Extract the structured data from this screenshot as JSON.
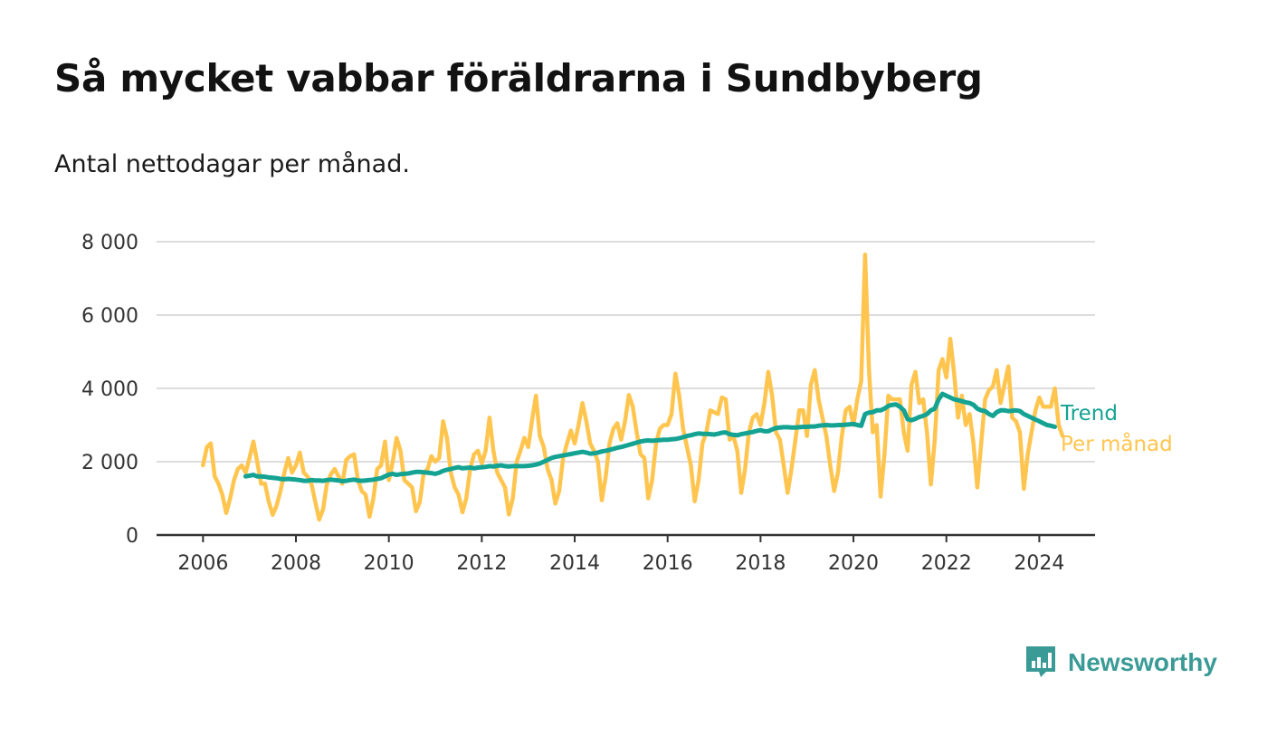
{
  "header": {
    "title": "Så mycket vabbar föräldrarna i Sundbyberg",
    "subtitle": "Antal nettodagar per månad."
  },
  "brand": {
    "name": "Newsworthy",
    "icon": "newsworthy-logo-icon",
    "color": "#3a9b96"
  },
  "colors": {
    "trend": "#14a393",
    "monthly": "#ffc54f",
    "grid": "#dddddd",
    "axis": "#333333"
  },
  "chart_data": {
    "type": "line",
    "x_unit": "year",
    "xlim": [
      2005.0,
      2025.2
    ],
    "ylim": [
      0,
      8000
    ],
    "yticks": [
      0,
      2000,
      4000,
      6000,
      8000
    ],
    "ytick_labels": [
      "0",
      "2 000",
      "4 000",
      "6 000",
      "8 000"
    ],
    "xticks": [
      2006,
      2008,
      2010,
      2012,
      2014,
      2016,
      2018,
      2020,
      2022,
      2024
    ],
    "xtick_labels": [
      "2006",
      "2008",
      "2010",
      "2012",
      "2014",
      "2016",
      "2018",
      "2020",
      "2022",
      "2024"
    ],
    "grid": true,
    "legend": "inline-right",
    "series": [
      {
        "name": "Per månad",
        "start": "2006-01",
        "values": [
          1900,
          2400,
          2500,
          1600,
          1400,
          1100,
          600,
          1000,
          1500,
          1800,
          1900,
          1700,
          2100,
          2550,
          2000,
          1400,
          1400,
          900,
          550,
          800,
          1200,
          1700,
          2100,
          1700,
          1900,
          2250,
          1700,
          1600,
          1400,
          900,
          420,
          700,
          1400,
          1650,
          1800,
          1600,
          1400,
          2050,
          2150,
          2200,
          1500,
          1200,
          1100,
          500,
          1000,
          1800,
          1900,
          2550,
          1500,
          2000,
          2650,
          2300,
          1500,
          1400,
          1300,
          650,
          900,
          1700,
          1800,
          2150,
          2000,
          2100,
          3100,
          2650,
          1700,
          1300,
          1100,
          620,
          1000,
          1800,
          2200,
          2300,
          1950,
          2300,
          3200,
          2300,
          1700,
          1500,
          1300,
          560,
          1000,
          2000,
          2300,
          2650,
          2400,
          3150,
          3800,
          2700,
          2400,
          1800,
          1500,
          860,
          1200,
          2100,
          2500,
          2850,
          2500,
          3000,
          3600,
          3100,
          2500,
          2300,
          2000,
          950,
          1600,
          2500,
          2900,
          3050,
          2600,
          3100,
          3820,
          3500,
          2800,
          2200,
          2100,
          1000,
          1500,
          2500,
          2900,
          3000,
          3000,
          3300,
          4400,
          3800,
          2900,
          2400,
          1900,
          920,
          1500,
          2500,
          2800,
          3400,
          3350,
          3300,
          3750,
          3700,
          2600,
          2700,
          2300,
          1150,
          1800,
          2800,
          3200,
          3300,
          3000,
          3600,
          4450,
          3800,
          2800,
          2600,
          1900,
          1150,
          1800,
          2600,
          3400,
          3400,
          2700,
          4100,
          4500,
          3700,
          3200,
          2700,
          1900,
          1200,
          1700,
          2700,
          3400,
          3500,
          3000,
          3700,
          4200,
          7650,
          4500,
          2800,
          3000,
          1050,
          2200,
          3800,
          3700,
          3700,
          3700,
          2800,
          2300,
          4100,
          4450,
          3600,
          3700,
          2800,
          1380,
          2600,
          4500,
          4800,
          4300,
          5350,
          4400,
          3200,
          3800,
          3000,
          3300,
          2500,
          1300,
          2500,
          3700,
          3950,
          4050,
          4500,
          3600,
          4100,
          4600,
          3200,
          3100,
          2800,
          1260,
          2200,
          2800,
          3400,
          3750,
          3500,
          3500,
          3500,
          4000,
          3000,
          2700
        ]
      },
      {
        "name": "Trend",
        "start": "2006-12",
        "values": [
          1600,
          1620,
          1640,
          1600,
          1600,
          1590,
          1570,
          1560,
          1550,
          1530,
          1520,
          1530,
          1520,
          1510,
          1500,
          1480,
          1480,
          1500,
          1490,
          1490,
          1480,
          1500,
          1510,
          1500,
          1490,
          1470,
          1480,
          1500,
          1510,
          1490,
          1480,
          1490,
          1500,
          1510,
          1530,
          1550,
          1600,
          1650,
          1670,
          1640,
          1660,
          1670,
          1680,
          1700,
          1720,
          1720,
          1710,
          1700,
          1690,
          1670,
          1700,
          1750,
          1780,
          1800,
          1830,
          1850,
          1820,
          1830,
          1840,
          1820,
          1840,
          1850,
          1860,
          1880,
          1870,
          1890,
          1900,
          1880,
          1870,
          1880,
          1880,
          1880,
          1880,
          1890,
          1900,
          1920,
          1950,
          2000,
          2050,
          2100,
          2130,
          2150,
          2170,
          2190,
          2210,
          2230,
          2250,
          2270,
          2250,
          2220,
          2230,
          2250,
          2280,
          2300,
          2320,
          2350,
          2380,
          2400,
          2430,
          2460,
          2490,
          2520,
          2550,
          2570,
          2580,
          2570,
          2580,
          2590,
          2600,
          2600,
          2610,
          2620,
          2640,
          2670,
          2700,
          2720,
          2750,
          2770,
          2760,
          2760,
          2750,
          2740,
          2760,
          2790,
          2800,
          2750,
          2730,
          2720,
          2750,
          2770,
          2790,
          2810,
          2840,
          2860,
          2830,
          2830,
          2880,
          2920,
          2930,
          2940,
          2940,
          2930,
          2930,
          2940,
          2950,
          2950,
          2960,
          2960,
          2980,
          2990,
          3000,
          2990,
          2990,
          3000,
          3000,
          3010,
          3020,
          3030,
          3000,
          2980,
          3300,
          3340,
          3350,
          3400,
          3400,
          3450,
          3520,
          3550,
          3560,
          3500,
          3400,
          3160,
          3130,
          3170,
          3220,
          3250,
          3300,
          3400,
          3450,
          3700,
          3850,
          3800,
          3750,
          3700,
          3680,
          3650,
          3620,
          3600,
          3550,
          3450,
          3400,
          3380,
          3300,
          3250,
          3350,
          3400,
          3400,
          3380,
          3390,
          3400,
          3380,
          3300,
          3250,
          3200,
          3150,
          3100,
          3050,
          3000,
          2980,
          2950
        ]
      }
    ]
  }
}
